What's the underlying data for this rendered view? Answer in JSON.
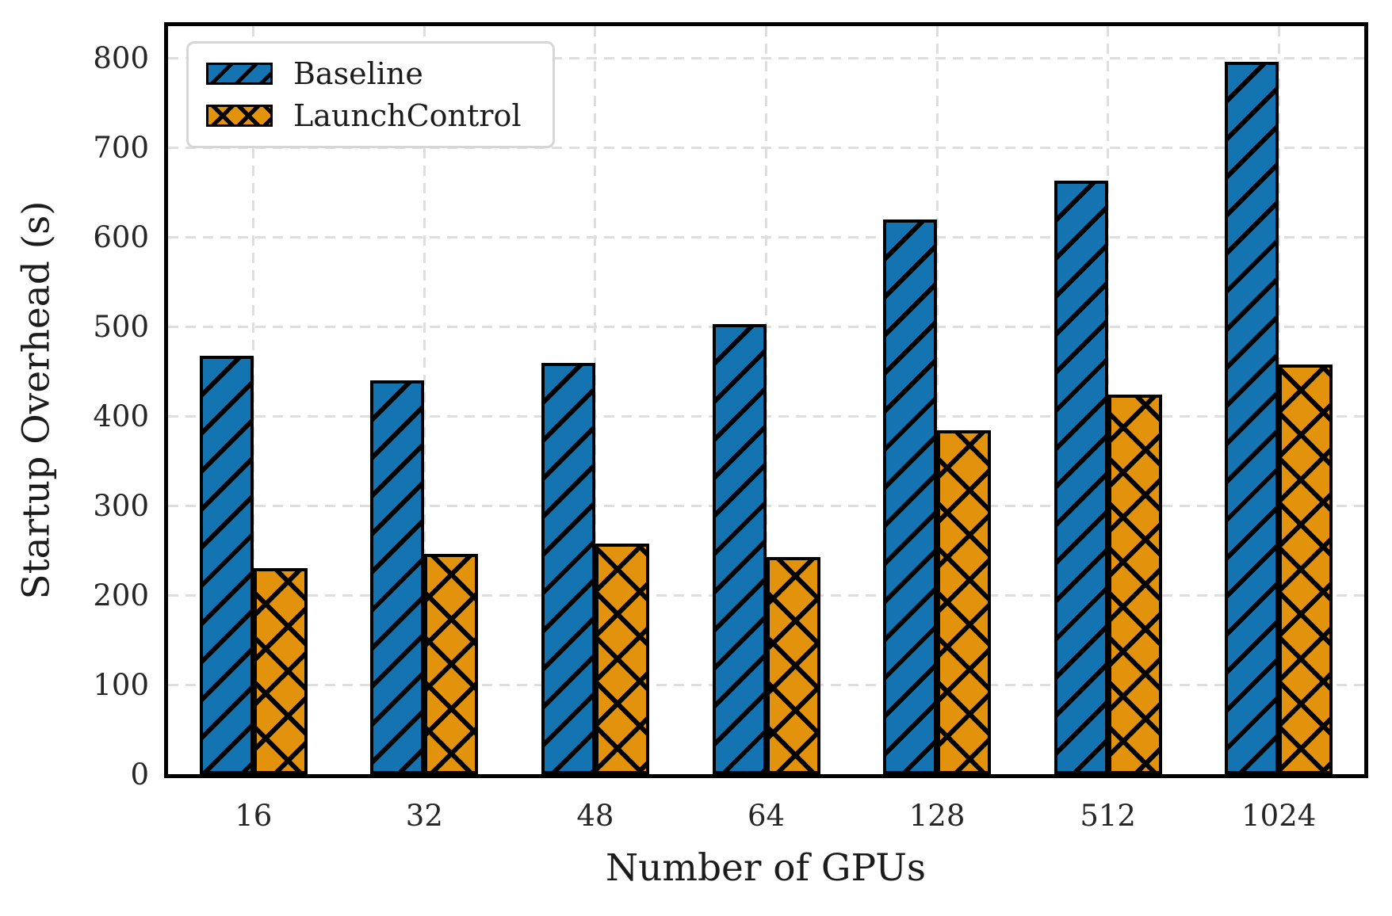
{
  "chart_data": {
    "type": "bar",
    "title": "",
    "xlabel": "Number of GPUs",
    "ylabel": "Startup Overhead (s)",
    "categories": [
      "16",
      "32",
      "48",
      "64",
      "128",
      "512",
      "1024"
    ],
    "series": [
      {
        "name": "Baseline",
        "color": "#1473B1",
        "hatch": "//",
        "values": [
          468,
          440,
          460,
          503,
          620,
          663,
          796
        ]
      },
      {
        "name": "LaunchControl",
        "color": "#E2930B",
        "hatch": "xx",
        "values": [
          230,
          246,
          258,
          243,
          384,
          424,
          458
        ]
      }
    ],
    "yticks": [
      0,
      100,
      200,
      300,
      400,
      500,
      600,
      700,
      800
    ],
    "ylim": [
      0,
      836
    ],
    "grid": true,
    "grid_style": "dashed",
    "legend_position": "upper left",
    "edge_color": "#000000",
    "grid_color": "#dedede"
  }
}
